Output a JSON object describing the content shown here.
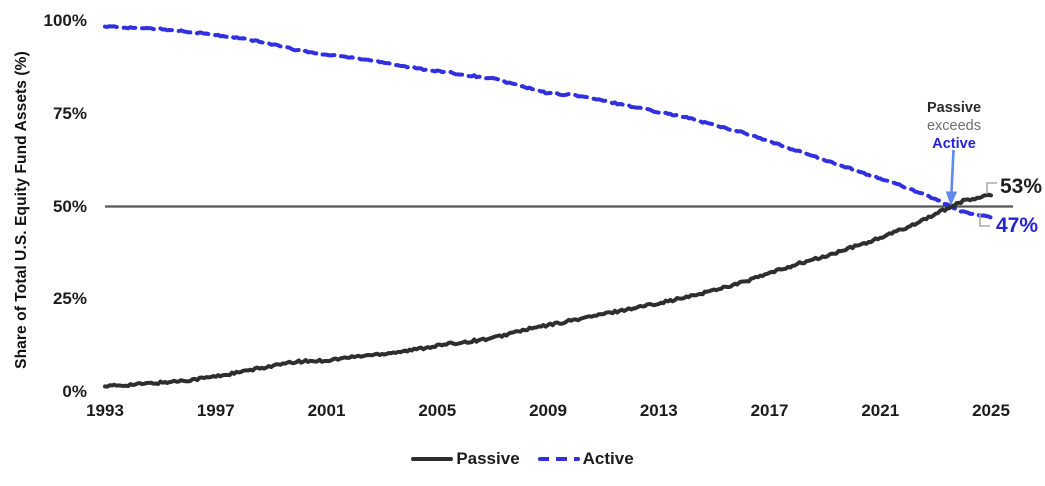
{
  "chart_data": {
    "type": "line",
    "title": "",
    "xlabel": "",
    "ylabel": "Share of Total U.S. Equity Fund Assets (%)",
    "x": [
      1993,
      1994,
      1995,
      1996,
      1997,
      1998,
      1999,
      2000,
      2001,
      2002,
      2003,
      2004,
      2005,
      2006,
      2007,
      2008,
      2009,
      2010,
      2011,
      2012,
      2013,
      2014,
      2015,
      2016,
      2017,
      2018,
      2019,
      2020,
      2021,
      2022,
      2023,
      2024,
      2025
    ],
    "series": [
      {
        "name": "Passive",
        "color": "#2e2e2e",
        "style": "solid",
        "values": [
          1.5,
          2.0,
          2.5,
          3.2,
          4.2,
          5.5,
          7.0,
          8.2,
          8.5,
          9.5,
          10.3,
          11.2,
          12.5,
          13.5,
          14.5,
          16.5,
          18.0,
          19.5,
          21.0,
          22.5,
          24.0,
          25.5,
          27.5,
          29.5,
          32.0,
          34.5,
          36.5,
          39.0,
          41.5,
          44.5,
          48.0,
          51.5,
          53.0
        ]
      },
      {
        "name": "Active",
        "color": "#3030e0",
        "style": "dashed",
        "values": [
          98.5,
          98.2,
          97.8,
          97.2,
          96.2,
          95.2,
          93.8,
          92.0,
          91.0,
          90.0,
          89.0,
          87.5,
          86.5,
          85.5,
          84.5,
          82.5,
          80.5,
          80.0,
          78.5,
          77.0,
          75.5,
          74.0,
          72.0,
          70.0,
          67.5,
          65.0,
          62.5,
          60.0,
          57.5,
          55.0,
          52.0,
          48.5,
          47.0
        ]
      }
    ],
    "xlim": [
      1993,
      2025
    ],
    "ylim": [
      0,
      100
    ],
    "x_ticks": [
      1993,
      1997,
      2001,
      2005,
      2009,
      2013,
      2017,
      2021,
      2025
    ],
    "x_tick_labels": [
      "1993",
      "1997",
      "2001",
      "2005",
      "2009",
      "2013",
      "2017",
      "2021",
      "2025"
    ],
    "y_ticks": [
      0,
      25,
      50,
      75,
      100
    ],
    "y_tick_labels": [
      "0%",
      "25%",
      "50%",
      "75%",
      "100%"
    ],
    "reference_line": {
      "value": 50,
      "color": "#555555"
    },
    "grid": false,
    "legend_position": "bottom"
  },
  "annotations": {
    "crossover": {
      "line1": "Passive",
      "line2": "exceeds",
      "line3": "Active",
      "arrow_color": "#6188ec"
    },
    "end_labels": {
      "passive": "53%",
      "active": "47%"
    }
  },
  "colors": {
    "passive_line": "#2e2e2e",
    "active_line": "#3030e0",
    "reference_line": "#555555",
    "annotation_gray": "#6e6e6e",
    "annotation_blue": "#2424d6",
    "leader_gray": "#ababab",
    "background": "#ffffff"
  }
}
